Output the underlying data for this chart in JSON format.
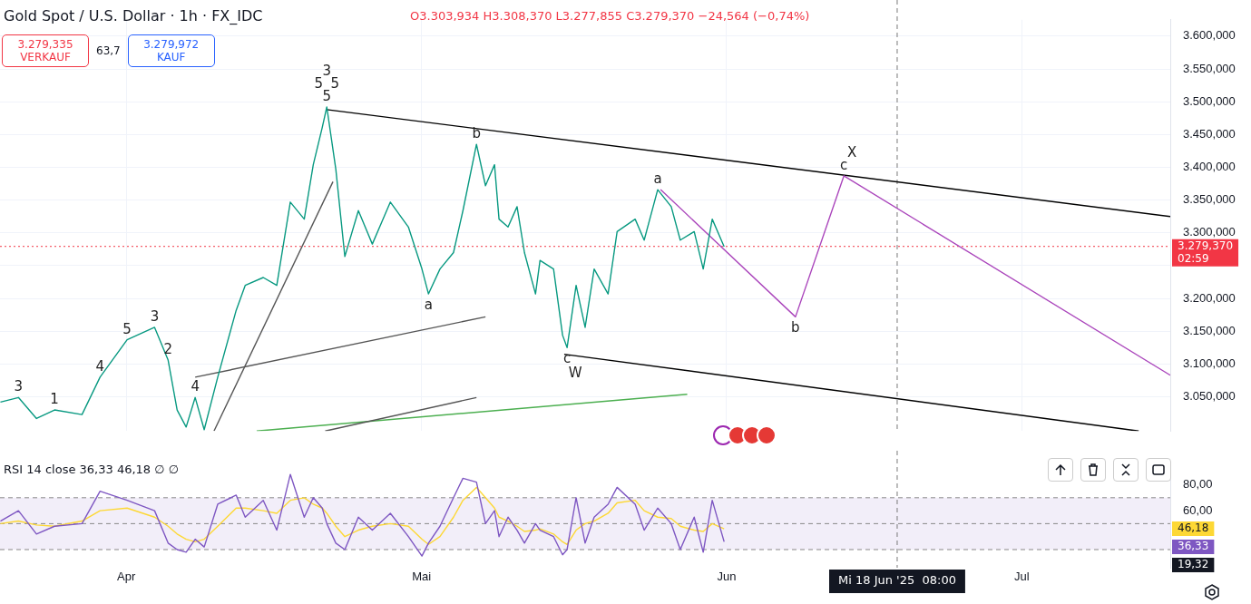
{
  "chart_data": [
    {
      "type": "line",
      "title": "Gold Spot / U.S. Dollar · 1h · FX_IDC",
      "subtitle": "O3.303,934 H3.308,370 L3.277,855 C3.279,370 −24,564 (−0,74%)",
      "x": [
        "2025-03-19T05:00",
        "2025-03-21T01:00",
        "2025-03-22T21:00",
        "2025-03-24T17:00",
        "2025-03-27T12:00",
        "2025-03-29T08:00",
        "2025-04-01T02:00",
        "2025-04-03T21:00",
        "2025-04-05T06:00",
        "2025-04-06T04:00",
        "2025-04-07T02:00",
        "2025-04-08T00:00",
        "2025-04-08T22:00",
        "2025-04-10T07:00",
        "2025-04-12T04:00",
        "2025-04-13T02:00",
        "2025-04-14T22:00",
        "2025-04-16T07:00",
        "2025-04-17T16:00",
        "2025-04-19T02:00",
        "2025-04-20T00:00",
        "2025-04-20T22:00",
        "2025-04-21T09:00",
        "2025-04-22T07:00",
        "2025-04-23T05:00",
        "2025-04-24T14:00",
        "2025-04-26T00:00",
        "2025-04-27T20:00",
        "2025-04-29T16:00",
        "2025-05-01T01:00",
        "2025-05-01T17:00",
        "2025-05-02T21:00",
        "2025-05-04T06:00",
        "2025-05-05T05:00",
        "2025-05-06T14:00",
        "2025-05-07T12:00",
        "2025-05-08T10:00",
        "2025-05-08T21:00",
        "2025-05-09T19:00",
        "2025-05-10T17:00",
        "2025-05-11T11:00",
        "2025-05-12T14:00",
        "2025-05-13T01:00",
        "2025-05-14T10:00",
        "2025-05-15T08:00",
        "2025-05-15T19:00",
        "2025-05-16T17:00",
        "2025-05-17T15:00",
        "2025-05-18T13:00",
        "2025-05-19T23:00",
        "2025-05-20T21:00",
        "2025-05-22T17:00",
        "2025-05-23T15:00",
        "2025-05-25T00:00",
        "2025-05-26T09:00",
        "2025-05-27T07:00",
        "2025-05-28T17:00",
        "2025-05-29T15:00",
        "2025-05-30T13:00",
        "2025-05-31T18:00"
      ],
      "series": [
        {
          "color": "#089981",
          "values": [
            3042,
            3049,
            3017,
            3030,
            3023,
            3080,
            3137,
            3156,
            3106,
            3030,
            3004,
            3049,
            3000,
            3080,
            3182,
            3220,
            3232,
            3220,
            3347,
            3321,
            3404,
            3461,
            3492,
            3397,
            3264,
            3334,
            3283,
            3347,
            3309,
            3245,
            3207,
            3245,
            3270,
            3334,
            3435,
            3372,
            3404,
            3321,
            3309,
            3340,
            3270,
            3207,
            3258,
            3245,
            3144,
            3125,
            3220,
            3156,
            3245,
            3207,
            3302,
            3321,
            3289,
            3366,
            3340,
            3289,
            3302,
            3245,
            3321,
            3279
          ]
        },
        {
          "color": "#ab47bc",
          "x": [
            "2025-05-25T07:00",
            "2025-06-08T00:00",
            "2025-06-12T22:00",
            "2025-07-16T02:00"
          ],
          "values": [
            3366,
            3172,
            3387,
            3083
          ]
        },
        {
          "color": "#000000",
          "x": [
            "2025-04-21T09:00",
            "2025-07-16T02:00"
          ],
          "values": [
            3488,
            3325
          ]
        },
        {
          "color": "#000000",
          "x": [
            "2025-05-15T12:00",
            "2025-07-12T21:00"
          ],
          "values": [
            3115,
            2998
          ]
        },
        {
          "color": "#555555",
          "x": [
            "2025-04-08T00:00",
            "2025-05-07T12:00"
          ],
          "values": [
            3080,
            3172
          ]
        },
        {
          "color": "#555555",
          "x": [
            "2025-04-09T22:00",
            "2025-04-22T00:00"
          ],
          "values": [
            2998,
            3378
          ]
        },
        {
          "color": "#555555",
          "x": [
            "2025-04-21T05:00",
            "2025-05-06T14:00"
          ],
          "values": [
            2998,
            3049
          ]
        },
        {
          "color": "#4caf50",
          "x": [
            "2025-04-14T06:00",
            "2025-05-28T00:00"
          ],
          "values": [
            2998,
            3054
          ]
        }
      ],
      "xlim": [
        "2025-03-19T04:00",
        "2025-07-16T02:00"
      ],
      "xticks": [
        {
          "value": "2025-04-01",
          "label": null
        },
        {
          "value": "2025-05-01",
          "label": null
        },
        {
          "value": "2025-06-01",
          "label": null
        },
        {
          "value": "2025-07-01",
          "label": null
        }
      ],
      "ylim": [
        2998,
        3625
      ],
      "yticks": [
        {
          "value": 3050,
          "label": "3.050,000"
        },
        {
          "value": 3100,
          "label": "3.100,000"
        },
        {
          "value": 3150,
          "label": "3.150,000"
        },
        {
          "value": 3200,
          "label": "3.200,000"
        },
        {
          "value": 3250,
          "label": null
        },
        {
          "value": 3300,
          "label": "3.300,000"
        },
        {
          "value": 3350,
          "label": "3.350,000"
        },
        {
          "value": 3400,
          "label": "3.400,000"
        },
        {
          "value": 3450,
          "label": "3.450,000"
        },
        {
          "value": 3500,
          "label": "3.500,000"
        },
        {
          "value": 3550,
          "label": "3.550,000"
        },
        {
          "value": 3600,
          "label": "3.600,000"
        }
      ],
      "tick_labels": "y",
      "grid": true,
      "ref_lines": [
        {
          "axis": "y",
          "value": 3279.37,
          "label": "3.279,370\n02:59",
          "color": "#f23645",
          "line_style": "dotted"
        },
        {
          "axis": "x",
          "value": "2025-06-18T08:00",
          "color": "#777777",
          "line_style": "dashed"
        }
      ],
      "annotations": [
        "3.279,335 VERKAUF",
        "63,7",
        "3.279,972 KAUF",
        {
          "text": "5",
          "x": "2025-04-21T09:00",
          "y": 3492
        },
        {
          "text": "5",
          "x": "2025-04-21T09:00",
          "y": 3492
        },
        {
          "text": "5",
          "x": "2025-04-21T09:00",
          "y": 3492
        },
        {
          "text": "3",
          "x": "2025-04-21T09:00",
          "y": 3492
        },
        {
          "text": "b",
          "x": "2025-05-06T14:00",
          "y": 3435
        },
        {
          "text": "a",
          "x": "2025-05-01T17:00",
          "y": 3207
        },
        {
          "text": "c",
          "x": "2025-05-15T19:00",
          "y": 3125
        },
        {
          "text": "W",
          "x": "2025-05-15T19:00",
          "y": 3125
        },
        {
          "text": "a",
          "x": "2025-05-25T00:00",
          "y": 3366
        },
        {
          "text": "b",
          "x": "2025-06-08T00:00",
          "y": 3172
        },
        {
          "text": "c",
          "x": "2025-06-12T22:00",
          "y": 3387
        },
        {
          "text": "X",
          "x": "2025-06-12T22:00",
          "y": 3387
        },
        {
          "text": "3",
          "x": "2025-04-03T21:00",
          "y": 3156
        },
        {
          "text": "2",
          "x": "2025-04-05T06:00",
          "y": 3106
        },
        {
          "text": "4",
          "x": "2025-04-08T00:00",
          "y": 3049
        },
        {
          "text": "5",
          "x": "2025-04-01T02:00",
          "y": 3137
        },
        {
          "text": "4",
          "x": "2025-03-29T08:00",
          "y": 3080
        },
        {
          "text": "1",
          "x": "2025-03-24T17:00",
          "y": 3030
        },
        {
          "text": "3",
          "x": "2025-03-21T01:00",
          "y": 3049
        }
      ]
    },
    {
      "type": "line",
      "title": "RSI 14 close 36,33 46,18 ∅ ∅",
      "x": [
        "2025-03-19T05:00",
        "2025-03-21T01:00",
        "2025-03-22T21:00",
        "2025-03-24T17:00",
        "2025-03-27T12:00",
        "2025-03-29T08:00",
        "2025-04-01T02:00",
        "2025-04-03T21:00",
        "2025-04-05T06:00",
        "2025-04-06T04:00",
        "2025-04-07T02:00",
        "2025-04-08T00:00",
        "2025-04-08T22:00",
        "2025-04-10T07:00",
        "2025-04-12T04:00",
        "2025-04-13T02:00",
        "2025-04-14T22:00",
        "2025-04-16T07:00",
        "2025-04-17T16:00",
        "2025-04-19T02:00",
        "2025-04-20T00:00",
        "2025-04-20T22:00",
        "2025-04-21T09:00",
        "2025-04-22T07:00",
        "2025-04-23T05:00",
        "2025-04-24T14:00",
        "2025-04-26T00:00",
        "2025-04-27T20:00",
        "2025-04-29T16:00",
        "2025-05-01T01:00",
        "2025-05-01T17:00",
        "2025-05-02T21:00",
        "2025-05-04T06:00",
        "2025-05-05T05:00",
        "2025-05-06T14:00",
        "2025-05-07T12:00",
        "2025-05-08T10:00",
        "2025-05-08T21:00",
        "2025-05-09T19:00",
        "2025-05-10T17:00",
        "2025-05-11T11:00",
        "2025-05-12T14:00",
        "2025-05-13T01:00",
        "2025-05-14T10:00",
        "2025-05-15T08:00",
        "2025-05-15T19:00",
        "2025-05-16T17:00",
        "2025-05-17T15:00",
        "2025-05-18T13:00",
        "2025-05-19T23:00",
        "2025-05-20T21:00",
        "2025-05-22T17:00",
        "2025-05-23T15:00",
        "2025-05-25T00:00",
        "2025-05-26T09:00",
        "2025-05-27T07:00",
        "2025-05-28T17:00",
        "2025-05-29T15:00",
        "2025-05-30T13:00",
        "2025-05-31T18:00"
      ],
      "series": [
        {
          "color": "#7e57c2",
          "values": [
            52,
            60,
            42,
            48,
            50,
            75,
            68,
            60,
            35,
            30,
            28,
            38,
            32,
            65,
            72,
            55,
            68,
            45,
            88,
            55,
            70,
            62,
            50,
            35,
            30,
            55,
            45,
            58,
            40,
            25,
            35,
            48,
            70,
            85,
            82,
            50,
            60,
            40,
            55,
            45,
            35,
            50,
            45,
            40,
            26,
            30,
            70,
            35,
            55,
            65,
            78,
            65,
            45,
            62,
            50,
            30,
            55,
            28,
            68,
            36
          ]
        },
        {
          "color": "#fdd835",
          "values": [
            50,
            52,
            49,
            48,
            52,
            60,
            62,
            55,
            48,
            42,
            38,
            36,
            38,
            48,
            62,
            62,
            60,
            58,
            68,
            70,
            65,
            62,
            58,
            48,
            40,
            45,
            48,
            50,
            48,
            38,
            34,
            40,
            55,
            68,
            78,
            70,
            62,
            55,
            52,
            48,
            44,
            45,
            46,
            42,
            36,
            34,
            45,
            50,
            52,
            58,
            66,
            68,
            60,
            55,
            54,
            48,
            45,
            44,
            50,
            46
          ]
        }
      ],
      "xlim": [
        "2025-03-19T04:00",
        "2025-07-16T02:00"
      ],
      "xticks": [
        {
          "value": "2025-04-01",
          "label": "Apr"
        },
        {
          "value": "2025-05-01",
          "label": "Mai"
        },
        {
          "value": "2025-06-01",
          "label": "Jun"
        },
        {
          "value": "2025-07-01",
          "label": "Jul"
        }
      ],
      "ylim": [
        16,
        91
      ],
      "yticks": [
        {
          "value": 60,
          "label": "60,00"
        },
        {
          "value": 80,
          "label": "80,00"
        }
      ],
      "bands": [
        {
          "axis": "y",
          "from": 30,
          "to": 70,
          "color": "#7e57c2"
        }
      ],
      "ref_lines": [
        {
          "axis": "y",
          "value": 70,
          "color": "#888888",
          "line_style": "dashed"
        },
        {
          "axis": "y",
          "value": 50,
          "color": "#888888",
          "line_style": "dashed"
        },
        {
          "axis": "y",
          "value": 30,
          "color": "#888888",
          "line_style": "dashed"
        },
        {
          "axis": "x",
          "value": "2025-06-18T08:00",
          "label": "Mi 18 Jun '25  08:00",
          "color": "#777777",
          "line_style": "dashed"
        }
      ],
      "annotations": [
        "46,18",
        "36,33",
        "19,32"
      ]
    }
  ]
}
